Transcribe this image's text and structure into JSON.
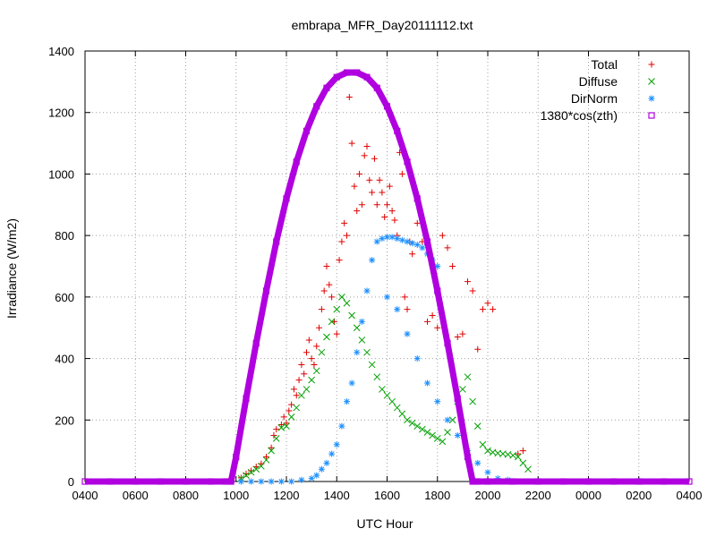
{
  "chart_data": {
    "type": "scatter",
    "title": "embrapa_MFR_Day20111112.txt",
    "xlabel": "UTC Hour",
    "ylabel": "Irradiance (W/m2)",
    "x_ticks": [
      "0400",
      "0600",
      "0800",
      "1000",
      "1200",
      "1400",
      "1600",
      "1800",
      "2000",
      "2200",
      "0000",
      "0200",
      "0400"
    ],
    "xlim": [
      4,
      28
    ],
    "ylim": [
      0,
      1400
    ],
    "y_ticks": [
      0,
      200,
      400,
      600,
      800,
      1000,
      1200,
      1400
    ],
    "grid": true,
    "legend_position": "top-right",
    "series": [
      {
        "name": "Total",
        "color": "#e00000",
        "marker": "plus",
        "points": [
          [
            10.2,
            12
          ],
          [
            10.4,
            25
          ],
          [
            10.6,
            35
          ],
          [
            10.8,
            48
          ],
          [
            11.0,
            58
          ],
          [
            11.2,
            80
          ],
          [
            11.4,
            110
          ],
          [
            11.5,
            150
          ],
          [
            11.6,
            170
          ],
          [
            11.8,
            185
          ],
          [
            11.9,
            210
          ],
          [
            12.0,
            190
          ],
          [
            12.1,
            230
          ],
          [
            12.2,
            250
          ],
          [
            12.3,
            300
          ],
          [
            12.4,
            280
          ],
          [
            12.5,
            330
          ],
          [
            12.6,
            380
          ],
          [
            12.7,
            350
          ],
          [
            12.8,
            420
          ],
          [
            12.9,
            460
          ],
          [
            13.0,
            400
          ],
          [
            13.1,
            380
          ],
          [
            13.2,
            440
          ],
          [
            13.3,
            500
          ],
          [
            13.4,
            560
          ],
          [
            13.5,
            620
          ],
          [
            13.6,
            700
          ],
          [
            13.7,
            640
          ],
          [
            13.8,
            600
          ],
          [
            13.9,
            520
          ],
          [
            14.0,
            480
          ],
          [
            14.1,
            720
          ],
          [
            14.2,
            780
          ],
          [
            14.3,
            840
          ],
          [
            14.4,
            800
          ],
          [
            14.5,
            1250
          ],
          [
            14.6,
            1100
          ],
          [
            14.7,
            960
          ],
          [
            14.8,
            880
          ],
          [
            14.9,
            1000
          ],
          [
            15.0,
            900
          ],
          [
            15.1,
            1060
          ],
          [
            15.2,
            1090
          ],
          [
            15.3,
            980
          ],
          [
            15.4,
            940
          ],
          [
            15.5,
            1050
          ],
          [
            15.6,
            900
          ],
          [
            15.7,
            980
          ],
          [
            15.8,
            940
          ],
          [
            15.9,
            860
          ],
          [
            16.0,
            900
          ],
          [
            16.1,
            960
          ],
          [
            16.2,
            880
          ],
          [
            16.3,
            850
          ],
          [
            16.4,
            800
          ],
          [
            16.5,
            1070
          ],
          [
            16.6,
            1000
          ],
          [
            16.7,
            600
          ],
          [
            16.8,
            560
          ],
          [
            16.9,
            780
          ],
          [
            17.0,
            740
          ],
          [
            17.2,
            840
          ],
          [
            17.4,
            780
          ],
          [
            17.6,
            520
          ],
          [
            17.8,
            540
          ],
          [
            18.0,
            500
          ],
          [
            18.2,
            800
          ],
          [
            18.4,
            760
          ],
          [
            18.6,
            700
          ],
          [
            18.8,
            470
          ],
          [
            19.0,
            480
          ],
          [
            19.2,
            650
          ],
          [
            19.4,
            620
          ],
          [
            19.6,
            430
          ],
          [
            19.8,
            560
          ],
          [
            20.0,
            580
          ],
          [
            20.2,
            560
          ],
          [
            21.2,
            90
          ],
          [
            21.4,
            100
          ]
        ]
      },
      {
        "name": "Diffuse",
        "color": "#00a000",
        "marker": "cross",
        "points": [
          [
            10.2,
            10
          ],
          [
            10.4,
            20
          ],
          [
            10.6,
            30
          ],
          [
            10.8,
            40
          ],
          [
            11.0,
            50
          ],
          [
            11.2,
            70
          ],
          [
            11.4,
            100
          ],
          [
            11.6,
            140
          ],
          [
            11.8,
            175
          ],
          [
            12.0,
            180
          ],
          [
            12.2,
            210
          ],
          [
            12.4,
            240
          ],
          [
            12.6,
            280
          ],
          [
            12.8,
            300
          ],
          [
            13.0,
            330
          ],
          [
            13.2,
            360
          ],
          [
            13.4,
            420
          ],
          [
            13.6,
            470
          ],
          [
            13.8,
            520
          ],
          [
            14.0,
            560
          ],
          [
            14.2,
            600
          ],
          [
            14.4,
            580
          ],
          [
            14.6,
            540
          ],
          [
            14.8,
            500
          ],
          [
            15.0,
            460
          ],
          [
            15.2,
            420
          ],
          [
            15.4,
            380
          ],
          [
            15.6,
            340
          ],
          [
            15.8,
            300
          ],
          [
            16.0,
            280
          ],
          [
            16.2,
            260
          ],
          [
            16.4,
            240
          ],
          [
            16.6,
            220
          ],
          [
            16.8,
            200
          ],
          [
            17.0,
            190
          ],
          [
            17.2,
            180
          ],
          [
            17.4,
            170
          ],
          [
            17.6,
            160
          ],
          [
            17.8,
            150
          ],
          [
            18.0,
            140
          ],
          [
            18.2,
            130
          ],
          [
            18.4,
            160
          ],
          [
            18.6,
            200
          ],
          [
            18.8,
            260
          ],
          [
            19.0,
            300
          ],
          [
            19.2,
            340
          ],
          [
            19.4,
            260
          ],
          [
            19.6,
            180
          ],
          [
            19.8,
            120
          ],
          [
            20.0,
            100
          ],
          [
            20.2,
            95
          ],
          [
            20.4,
            92
          ],
          [
            20.6,
            90
          ],
          [
            20.8,
            88
          ],
          [
            21.0,
            85
          ],
          [
            21.2,
            80
          ],
          [
            21.4,
            60
          ],
          [
            21.6,
            40
          ]
        ]
      },
      {
        "name": "DirNorm",
        "color": "#1e90ff",
        "marker": "star",
        "points": [
          [
            9.8,
            0
          ],
          [
            10.2,
            0
          ],
          [
            10.6,
            0
          ],
          [
            11.0,
            0
          ],
          [
            11.4,
            0
          ],
          [
            11.8,
            0
          ],
          [
            12.2,
            0
          ],
          [
            12.6,
            5
          ],
          [
            13.0,
            10
          ],
          [
            13.2,
            20
          ],
          [
            13.4,
            40
          ],
          [
            13.6,
            60
          ],
          [
            13.8,
            90
          ],
          [
            14.0,
            120
          ],
          [
            14.2,
            180
          ],
          [
            14.4,
            260
          ],
          [
            14.6,
            320
          ],
          [
            14.8,
            420
          ],
          [
            15.0,
            520
          ],
          [
            15.2,
            620
          ],
          [
            15.4,
            720
          ],
          [
            15.6,
            780
          ],
          [
            15.8,
            790
          ],
          [
            16.0,
            795
          ],
          [
            16.2,
            795
          ],
          [
            16.4,
            790
          ],
          [
            16.6,
            785
          ],
          [
            16.8,
            780
          ],
          [
            17.0,
            775
          ],
          [
            17.2,
            770
          ],
          [
            17.4,
            760
          ],
          [
            17.6,
            740
          ],
          [
            17.8,
            720
          ],
          [
            18.0,
            700
          ],
          [
            16.0,
            600
          ],
          [
            16.4,
            560
          ],
          [
            16.8,
            480
          ],
          [
            17.2,
            400
          ],
          [
            17.6,
            320
          ],
          [
            18.0,
            260
          ],
          [
            18.4,
            200
          ],
          [
            18.8,
            150
          ],
          [
            19.2,
            100
          ],
          [
            19.6,
            60
          ],
          [
            20.0,
            30
          ],
          [
            20.4,
            10
          ],
          [
            20.8,
            5
          ],
          [
            21.2,
            0
          ],
          [
            21.6,
            0
          ]
        ]
      },
      {
        "name": "1380*cos(zth)",
        "color": "#b000e0",
        "marker": "square",
        "points": [
          [
            4.0,
            0
          ],
          [
            5.0,
            0
          ],
          [
            6.0,
            0
          ],
          [
            7.0,
            0
          ],
          [
            8.0,
            0
          ],
          [
            9.0,
            0
          ],
          [
            9.6,
            0
          ],
          [
            9.8,
            0
          ],
          [
            10.0,
            80
          ],
          [
            10.4,
            270
          ],
          [
            10.8,
            450
          ],
          [
            11.2,
            620
          ],
          [
            11.6,
            780
          ],
          [
            12.0,
            920
          ],
          [
            12.4,
            1040
          ],
          [
            12.8,
            1140
          ],
          [
            13.2,
            1220
          ],
          [
            13.6,
            1280
          ],
          [
            14.0,
            1315
          ],
          [
            14.4,
            1330
          ],
          [
            14.8,
            1330
          ],
          [
            15.2,
            1315
          ],
          [
            15.6,
            1280
          ],
          [
            16.0,
            1220
          ],
          [
            16.4,
            1140
          ],
          [
            16.8,
            1040
          ],
          [
            17.2,
            920
          ],
          [
            17.6,
            780
          ],
          [
            18.0,
            620
          ],
          [
            18.4,
            450
          ],
          [
            18.8,
            270
          ],
          [
            19.2,
            80
          ],
          [
            19.4,
            0
          ],
          [
            19.6,
            0
          ],
          [
            20.0,
            0
          ],
          [
            21.0,
            0
          ],
          [
            22.0,
            0
          ],
          [
            23.0,
            0
          ],
          [
            24.0,
            0
          ],
          [
            25.0,
            0
          ],
          [
            26.0,
            0
          ],
          [
            27.0,
            0
          ],
          [
            28.0,
            0
          ]
        ]
      }
    ]
  }
}
